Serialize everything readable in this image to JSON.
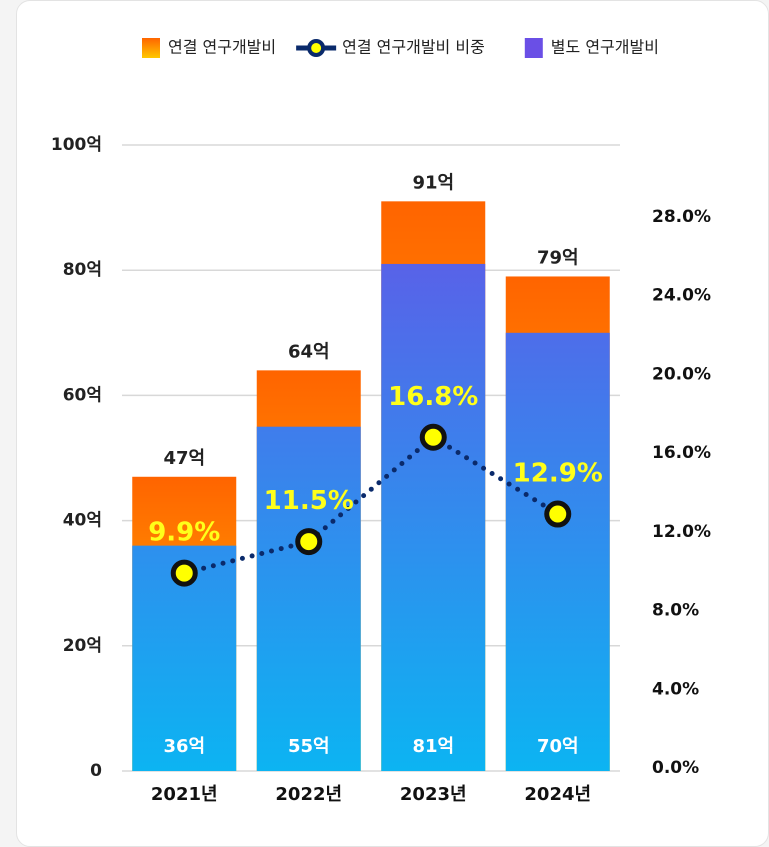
{
  "chart_data": {
    "type": "bar",
    "categories": [
      "2021년",
      "2022년",
      "2023년",
      "2024년"
    ],
    "series": [
      {
        "name": "연결 연구개발비",
        "color": "#ff8c00",
        "values": [
          47,
          64,
          91,
          79
        ],
        "value_labels": [
          "47억",
          "64억",
          "91억",
          "79억"
        ]
      },
      {
        "name": "연결 연구개발비 비중",
        "color": "#0a2a6b",
        "type": "line",
        "axis": "y2",
        "values": [
          9.9,
          11.5,
          16.8,
          12.9
        ],
        "value_labels": [
          "9.9%",
          "11.5%",
          "16.8%",
          "12.9%"
        ]
      },
      {
        "name": "별도 연구개발비",
        "color": "#3f8ef0",
        "values": [
          36,
          55,
          81,
          70
        ],
        "value_labels": [
          "36억",
          "55억",
          "81억",
          "70억"
        ]
      }
    ],
    "ylim": [
      0,
      100
    ],
    "yticks": [
      0,
      {
        "value": 20,
        "label": "20억"
      },
      {
        "value": 40,
        "label": "40억"
      },
      {
        "value": 60,
        "label": "60억"
      },
      {
        "value": 80,
        "label": "80억"
      },
      {
        "value": 100,
        "label": "100억"
      }
    ],
    "y2lim": [
      0,
      32
    ],
    "y2ticks": [
      {
        "value": 0,
        "label": "0.0%"
      },
      {
        "value": 4,
        "label": "4.0%"
      },
      {
        "value": 8,
        "label": "8.0%"
      },
      {
        "value": 12,
        "label": "12.0%"
      },
      {
        "value": 16,
        "label": "16.0%"
      },
      {
        "value": 20,
        "label": "20.0%"
      },
      {
        "value": 24,
        "label": "24.0%"
      },
      {
        "value": 28,
        "label": "28.0%"
      }
    ],
    "grid": true
  }
}
